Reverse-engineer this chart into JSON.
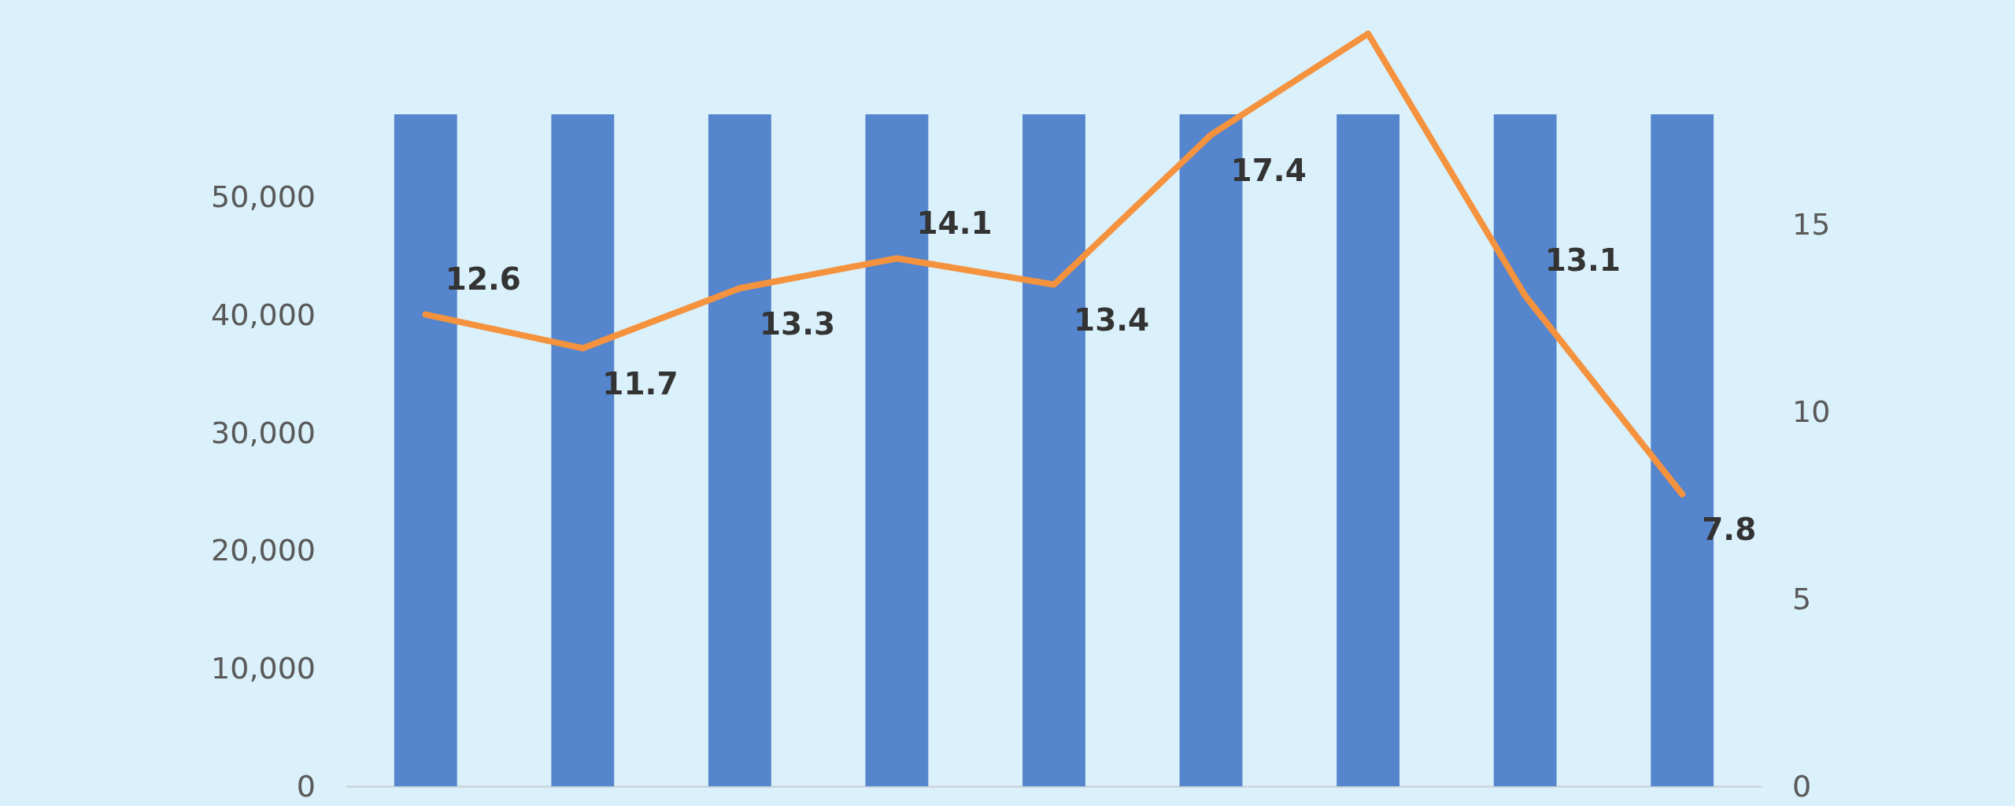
{
  "chart_data": {
    "type": "bar",
    "categories": [
      null,
      null,
      null,
      null,
      null,
      null,
      null,
      null,
      null
    ],
    "series": [
      {
        "color": "#5585cc",
        "values": [
          57000,
          57000,
          57000,
          57000,
          57000,
          57000,
          57000,
          57000,
          57000
        ]
      },
      {
        "type": "line",
        "axis": "y2",
        "color": "#f5923e",
        "values": [
          12.6,
          11.7,
          13.3,
          14.1,
          13.4,
          17.4,
          20.1,
          13.1,
          7.8
        ],
        "value_labels": [
          "12.6",
          "11.7",
          "13.3",
          "14.1",
          "13.4",
          "17.4",
          null,
          "13.1",
          "7.8"
        ]
      }
    ],
    "ylim": [
      0,
      66700
    ],
    "yticks": [
      {
        "value": 0,
        "label": "0"
      },
      {
        "value": 10000,
        "label": "10,000"
      },
      {
        "value": 20000,
        "label": "20,000"
      },
      {
        "value": 30000,
        "label": "30,000"
      },
      {
        "value": 40000,
        "label": "40,000"
      },
      {
        "value": 50000,
        "label": "50,000"
      }
    ],
    "y2lim": [
      0,
      21
    ],
    "y2ticks": [
      0,
      5,
      10,
      15
    ],
    "marker": "none",
    "grid": false
  }
}
